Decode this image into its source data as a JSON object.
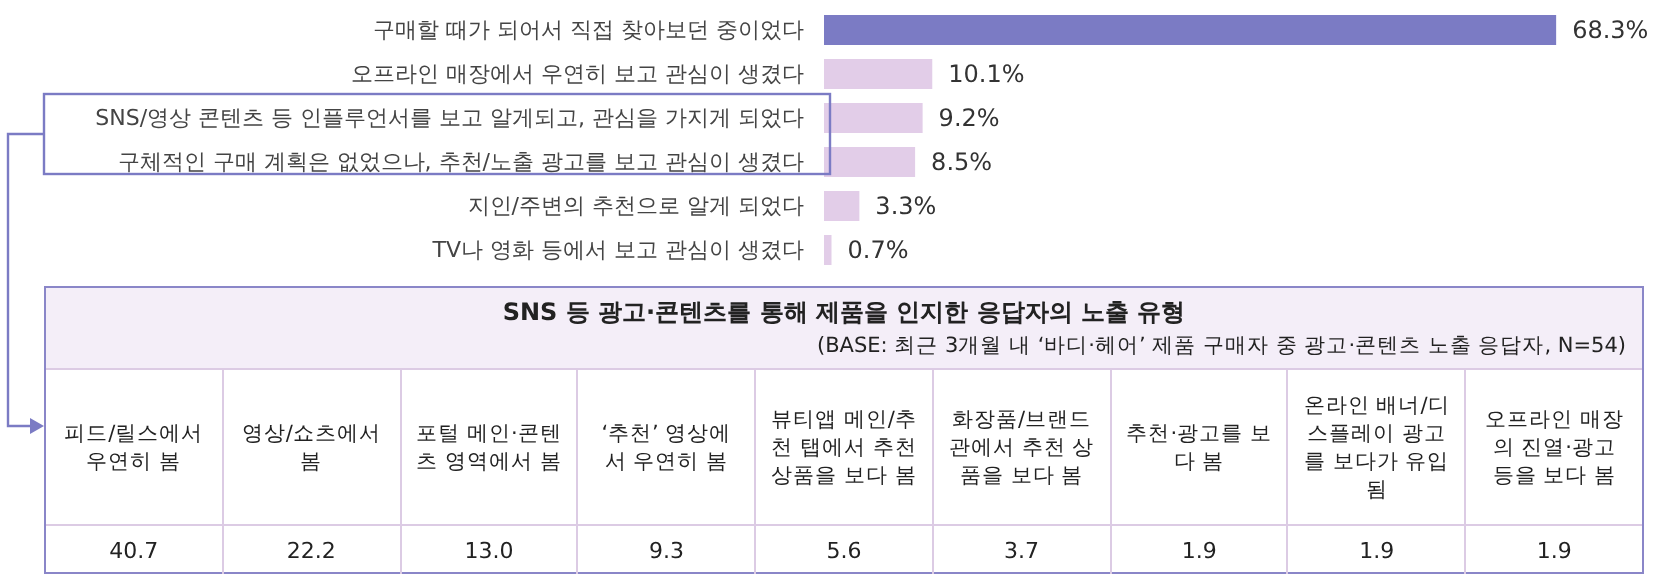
{
  "chart_data": [
    {
      "type": "bar",
      "orientation": "horizontal",
      "categories": [
        "구매할 때가 되어서 직접 찾아보던 중이었다",
        "오프라인 매장에서 우연히 보고 관심이 생겼다",
        "SNS/영상 콘텐츠 등 인플루언서를 보고 알게되고, 관심을 가지게 되었다",
        "구체적인 구매 계획은 없었으나, 추천/노출 광고를 보고 관심이 생겼다",
        "지인/주변의 추천으로 알게 되었다",
        "TV나 영화 등에서 보고 관심이 생겼다"
      ],
      "values": [
        68.3,
        10.1,
        9.2,
        8.5,
        3.3,
        0.7
      ],
      "value_labels": [
        "68.3%",
        "10.1%",
        "9.2%",
        "8.5%",
        "3.3%",
        "0.7%"
      ],
      "colors": [
        "#7b7bc4",
        "#e2cde8",
        "#e2cde8",
        "#e2cde8",
        "#e2cde8",
        "#e2cde8"
      ]
    },
    {
      "type": "other",
      "title": "SNS 등 광고·콘텐츠를 통해 제품을 인지한 응답자의 노출 유형",
      "subtitle": "(BASE: 최근 3개월 내 ‘바디·헤어’ 제품 구매자 중 광고·콘텐츠 노출 응답자, N=54)",
      "categories": [
        "피드/릴스에서 우연히 봄",
        "영상/쇼츠에서 봄",
        "포털 메인·콘텐츠 영역에서 봄",
        "‘추천’ 영상에서 우연히 봄",
        "뷰티앱 메인/추천 탭에서 추천 상품을 보다 봄",
        "화장품/브랜드관에서 추천 상품을 보다 봄",
        "추천·광고를 보다 봄",
        "온라인 배너/디스플레이 광고를 보다가 유입됨",
        "오프라인 매장의 진열·광고 등을 보다 봄"
      ],
      "values": [
        40.7,
        22.2,
        13.0,
        9.3,
        5.6,
        3.7,
        1.9,
        1.9,
        1.9
      ],
      "value_labels": [
        "40.7",
        "22.2",
        "13.0",
        "9.3",
        "5.6",
        "3.7",
        "1.9",
        "1.9",
        "1.9"
      ]
    }
  ]
}
